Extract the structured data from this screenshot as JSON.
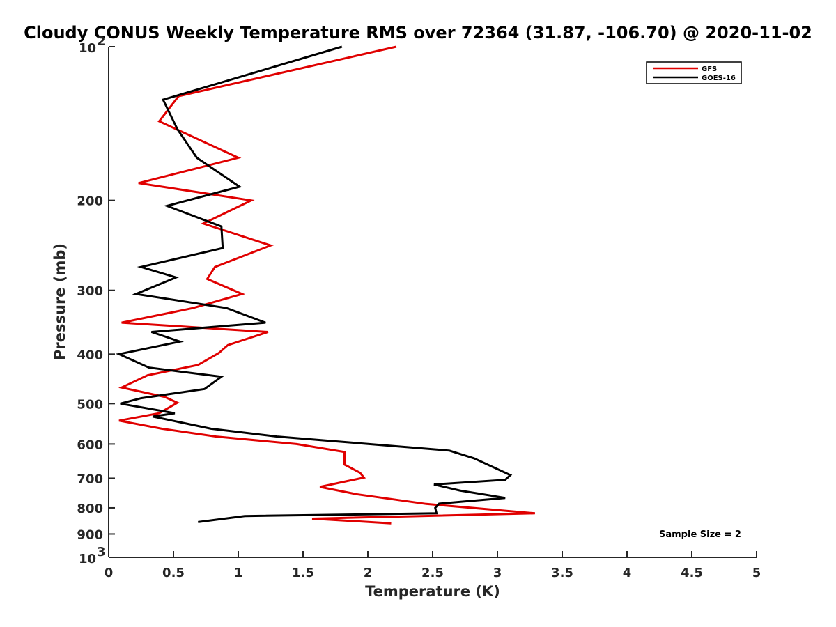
{
  "chart_data": {
    "type": "line",
    "title": "Cloudy CONUS Weekly Temperature RMS over 72364 (31.87, -106.70) @ 2020-11-02",
    "xlabel": "Temperature (K)",
    "ylabel": "Pressure (mb)",
    "xlim": [
      0,
      5
    ],
    "ylim": [
      100,
      1000
    ],
    "yscale": "log",
    "y_reversed": true,
    "grid": false,
    "legend_position": "top-right",
    "x_ticks": [
      {
        "value": 0,
        "label": "0"
      },
      {
        "value": 0.5,
        "label": "0.5"
      },
      {
        "value": 1,
        "label": "1"
      },
      {
        "value": 1.5,
        "label": "1.5"
      },
      {
        "value": 2,
        "label": "2"
      },
      {
        "value": 2.5,
        "label": "2.5"
      },
      {
        "value": 3,
        "label": "3"
      },
      {
        "value": 3.5,
        "label": "3.5"
      },
      {
        "value": 4,
        "label": "4"
      },
      {
        "value": 4.5,
        "label": "4.5"
      },
      {
        "value": 5,
        "label": "5"
      }
    ],
    "y_ticks": [
      {
        "value": 100,
        "base": "10",
        "exp": "2"
      },
      {
        "value": 200,
        "label": "200"
      },
      {
        "value": 300,
        "label": "300"
      },
      {
        "value": 400,
        "label": "400"
      },
      {
        "value": 500,
        "label": "500"
      },
      {
        "value": 600,
        "label": "600"
      },
      {
        "value": 700,
        "label": "700"
      },
      {
        "value": 800,
        "label": "800"
      },
      {
        "value": 900,
        "label": "900"
      },
      {
        "value": 1000,
        "base": "10",
        "exp": "3"
      }
    ],
    "series": [
      {
        "name": "GFS",
        "color": "#e00000",
        "points": [
          [
            2.22,
            100
          ],
          [
            0.54,
            125
          ],
          [
            0.39,
            140
          ],
          [
            1.0,
            165
          ],
          [
            0.23,
            185
          ],
          [
            1.1,
            200
          ],
          [
            0.73,
            222
          ],
          [
            1.25,
            245
          ],
          [
            0.82,
            270
          ],
          [
            0.76,
            285
          ],
          [
            1.03,
            305
          ],
          [
            0.65,
            325
          ],
          [
            0.1,
            347
          ],
          [
            1.23,
            362
          ],
          [
            0.92,
            384
          ],
          [
            0.85,
            398
          ],
          [
            0.69,
            420
          ],
          [
            0.3,
            440
          ],
          [
            0.1,
            465
          ],
          [
            0.43,
            485
          ],
          [
            0.53,
            498
          ],
          [
            0.39,
            522
          ],
          [
            0.08,
            540
          ],
          [
            0.41,
            560
          ],
          [
            0.83,
            580
          ],
          [
            1.45,
            600
          ],
          [
            1.82,
            622
          ],
          [
            1.82,
            640
          ],
          [
            1.82,
            658
          ],
          [
            1.94,
            683
          ],
          [
            1.97,
            698
          ],
          [
            1.63,
            728
          ],
          [
            1.91,
            752
          ],
          [
            2.45,
            786
          ],
          [
            3.29,
            820
          ],
          [
            1.57,
            840
          ],
          [
            2.18,
            858
          ]
        ]
      },
      {
        "name": "GOES-16",
        "color": "#000000",
        "points": [
          [
            1.8,
            100
          ],
          [
            0.42,
            127
          ],
          [
            0.53,
            145
          ],
          [
            0.68,
            165
          ],
          [
            1.01,
            188
          ],
          [
            0.45,
            205
          ],
          [
            0.87,
            225
          ],
          [
            0.88,
            248
          ],
          [
            0.25,
            270
          ],
          [
            0.52,
            283
          ],
          [
            0.21,
            305
          ],
          [
            0.91,
            325
          ],
          [
            1.21,
            347
          ],
          [
            0.33,
            362
          ],
          [
            0.55,
            378
          ],
          [
            0.08,
            400
          ],
          [
            0.31,
            425
          ],
          [
            0.87,
            443
          ],
          [
            0.74,
            468
          ],
          [
            0.25,
            488
          ],
          [
            0.09,
            500
          ],
          [
            0.51,
            522
          ],
          [
            0.34,
            530
          ],
          [
            0.79,
            560
          ],
          [
            1.3,
            580
          ],
          [
            2.63,
            618
          ],
          [
            2.82,
            640
          ],
          [
            3.1,
            690
          ],
          [
            3.06,
            705
          ],
          [
            2.51,
            720
          ],
          [
            2.71,
            740
          ],
          [
            3.06,
            765
          ],
          [
            2.55,
            785
          ],
          [
            2.52,
            800
          ],
          [
            2.53,
            820
          ],
          [
            1.05,
            830
          ],
          [
            0.69,
            853
          ]
        ]
      }
    ],
    "annotations": [
      "Sample Size = 2"
    ]
  }
}
